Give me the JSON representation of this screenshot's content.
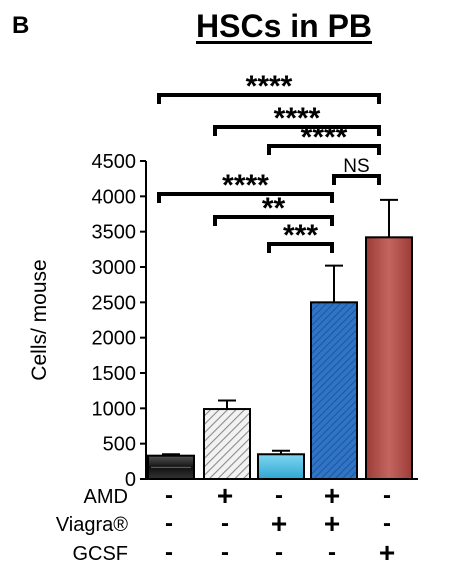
{
  "panel_label": "B",
  "chart_data": {
    "type": "bar",
    "title": "HSCs in PB",
    "xlabel": "",
    "ylabel": "Cells/ mouse",
    "ylim": [
      0,
      4500
    ],
    "yticks": [
      0,
      500,
      1000,
      1500,
      2000,
      2500,
      3000,
      3500,
      4000,
      4500
    ],
    "grid": false,
    "legend": "none",
    "treatments": [
      {
        "name": "AMD",
        "signs": [
          "-",
          "+",
          "-",
          "+",
          "-"
        ]
      },
      {
        "name": "Viagra®",
        "signs": [
          "-",
          "-",
          "+",
          "+",
          "-"
        ]
      },
      {
        "name": "GCSF",
        "signs": [
          "-",
          "-",
          "-",
          "-",
          "+"
        ]
      }
    ],
    "values": [
      330,
      990,
      350,
      2500,
      3420
    ],
    "errors": [
      20,
      120,
      50,
      520,
      530
    ],
    "colors": [
      "#1c1c1c",
      "#d9d9d9",
      "#4fc0e2",
      "#2f74c6",
      "#b5524c"
    ],
    "patterns": [
      "dark",
      "hatch-gray",
      "light-blue",
      "hatch-blue",
      "red"
    ],
    "significance": [
      {
        "from": 0,
        "to": 4,
        "label": "****"
      },
      {
        "from": 1,
        "to": 4,
        "label": "****"
      },
      {
        "from": 2,
        "to": 4,
        "label": "****"
      },
      {
        "from": 3,
        "to": 4,
        "label": "NS"
      },
      {
        "from": 0,
        "to": 3,
        "label": "****"
      },
      {
        "from": 1,
        "to": 3,
        "label": "**"
      },
      {
        "from": 2,
        "to": 3,
        "label": "***"
      }
    ]
  }
}
